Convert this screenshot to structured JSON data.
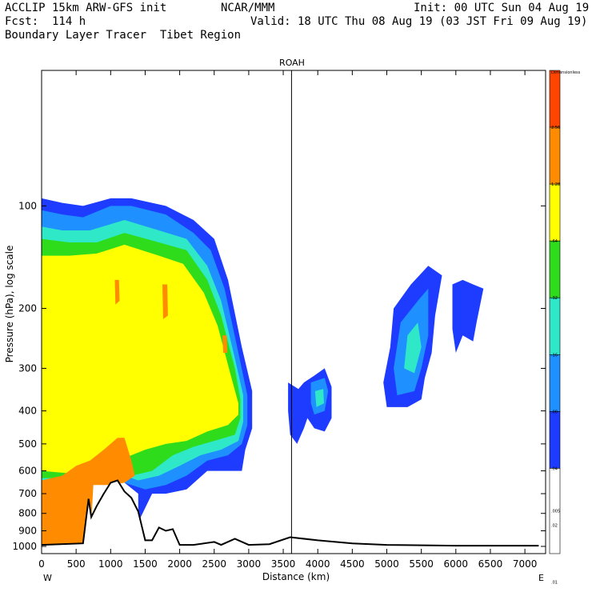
{
  "header": {
    "model": "ACCLIP 15km ARW-GFS init",
    "fcst": "Fcst:  114 h",
    "product": "Boundary Layer Tracer  Tibet Region",
    "org": "NCAR/MMM",
    "init": "Init: 00 UTC Sun 04 Aug 19",
    "valid": "Valid: 18 UTC Thu 08 Aug 19 (03 JST Fri 09 Aug 19)"
  },
  "chart_data": {
    "type": "heatmap",
    "title": "",
    "xlabel": "Distance (km)",
    "ylabel": "Pressure (hPa), log scale",
    "xlim": [
      0,
      7300
    ],
    "ylim": [
      1050,
      40
    ],
    "y_scale": "log",
    "x_ticks": [
      "0",
      "500",
      "1000",
      "1500",
      "2000",
      "2500",
      "3000",
      "3500",
      "4000",
      "4500",
      "5000",
      "5500",
      "6000",
      "6500",
      "7000"
    ],
    "x_tick_values": [
      0,
      500,
      1000,
      1500,
      2000,
      2500,
      3000,
      3500,
      4000,
      4500,
      5000,
      5500,
      6000,
      6500,
      7000
    ],
    "y_ticks": [
      "100",
      "200",
      "300",
      "400",
      "500",
      "600",
      "700",
      "800",
      "900",
      "1000"
    ],
    "y_tick_values": [
      100,
      200,
      300,
      400,
      500,
      600,
      700,
      800,
      900,
      1000
    ],
    "x_end_labels": {
      "left": "W",
      "right": "E"
    },
    "marker": {
      "label": "ROAH",
      "x": 3620
    },
    "colorbar": {
      "levels": [
        "Dimensionless",
        "2.56",
        "1.28",
        ".64",
        ".32",
        ".16",
        ".08",
        ".04",
        ".02",
        ".01",
        ".005"
      ],
      "colors": [
        "#ff4500",
        "#ff8c00",
        "#ffff00",
        "#2fdc1c",
        "#2fe8c8",
        "#1e90ff",
        "#1e3cff",
        "#ffffff"
      ]
    },
    "terrain": [
      [
        0,
        990
      ],
      [
        600,
        980
      ],
      [
        680,
        725
      ],
      [
        720,
        820
      ],
      [
        800,
        760
      ],
      [
        900,
        700
      ],
      [
        1000,
        650
      ],
      [
        1100,
        640
      ],
      [
        1200,
        690
      ],
      [
        1300,
        720
      ],
      [
        1400,
        790
      ],
      [
        1500,
        960
      ],
      [
        1600,
        960
      ],
      [
        1700,
        880
      ],
      [
        1800,
        900
      ],
      [
        1900,
        890
      ],
      [
        2000,
        990
      ],
      [
        2200,
        990
      ],
      [
        2500,
        970
      ],
      [
        2600,
        990
      ],
      [
        2800,
        950
      ],
      [
        3000,
        990
      ],
      [
        3300,
        985
      ],
      [
        3600,
        940
      ],
      [
        4000,
        960
      ],
      [
        4500,
        980
      ],
      [
        5000,
        990
      ],
      [
        6000,
        995
      ],
      [
        7200,
        995
      ]
    ],
    "series": [
      {
        "level": ".01",
        "color": "#1e3cff",
        "regions": [
          {
            "points": [
              [
                0,
                95
              ],
              [
                300,
                98
              ],
              [
                600,
                100
              ],
              [
                1000,
                95
              ],
              [
                1300,
                95
              ],
              [
                1800,
                100
              ],
              [
                2200,
                110
              ],
              [
                2500,
                125
              ],
              [
                2700,
                165
              ],
              [
                2900,
                260
              ],
              [
                3050,
                350
              ],
              [
                3050,
                450
              ],
              [
                2950,
                520
              ],
              [
                2900,
                600
              ],
              [
                2700,
                600
              ],
              [
                2400,
                600
              ],
              [
                2100,
                680
              ],
              [
                1800,
                700
              ],
              [
                1600,
                700
              ],
              [
                1400,
                850
              ],
              [
                1400,
                700
              ],
              [
                1200,
                650
              ],
              [
                1000,
                640
              ],
              [
                700,
                640
              ],
              [
                400,
                650
              ],
              [
                0,
                640
              ]
            ]
          },
          {
            "points": [
              [
                3570,
                330
              ],
              [
                3720,
                345
              ],
              [
                3800,
                330
              ],
              [
                3950,
                315
              ],
              [
                4100,
                300
              ],
              [
                4200,
                340
              ],
              [
                4200,
                420
              ],
              [
                4100,
                460
              ],
              [
                3950,
                450
              ],
              [
                3850,
                420
              ],
              [
                3800,
                450
              ],
              [
                3700,
                500
              ],
              [
                3600,
                470
              ],
              [
                3570,
                400
              ]
            ]
          },
          {
            "points": [
              [
                5100,
                200
              ],
              [
                5350,
                170
              ],
              [
                5600,
                150
              ],
              [
                5800,
                160
              ],
              [
                5700,
                210
              ],
              [
                5650,
                270
              ],
              [
                5550,
                320
              ],
              [
                5500,
                370
              ],
              [
                5300,
                390
              ],
              [
                5000,
                390
              ],
              [
                4950,
                330
              ],
              [
                5050,
                260
              ]
            ]
          },
          {
            "points": [
              [
                5950,
                170
              ],
              [
                6100,
                165
              ],
              [
                6250,
                170
              ],
              [
                6400,
                175
              ],
              [
                6300,
                220
              ],
              [
                6250,
                250
              ],
              [
                6100,
                240
              ],
              [
                6000,
                270
              ],
              [
                5950,
                230
              ]
            ]
          }
        ]
      },
      {
        "level": ".02",
        "color": "#1e90ff",
        "regions": [
          {
            "points": [
              [
                0,
                103
              ],
              [
                300,
                106
              ],
              [
                600,
                108
              ],
              [
                1000,
                100
              ],
              [
                1300,
                100
              ],
              [
                1800,
                106
              ],
              [
                2200,
                120
              ],
              [
                2450,
                135
              ],
              [
                2650,
                175
              ],
              [
                2850,
                270
              ],
              [
                2980,
                360
              ],
              [
                2980,
                440
              ],
              [
                2900,
                500
              ],
              [
                2700,
                540
              ],
              [
                2400,
                560
              ],
              [
                2100,
                620
              ],
              [
                1800,
                660
              ],
              [
                1500,
                680
              ],
              [
                1300,
                660
              ],
              [
                1100,
                640
              ],
              [
                800,
                650
              ],
              [
                400,
                660
              ],
              [
                0,
                655
              ]
            ]
          },
          {
            "points": [
              [
                3900,
                330
              ],
              [
                4100,
                320
              ],
              [
                4150,
                350
              ],
              [
                4100,
                400
              ],
              [
                3950,
                410
              ],
              [
                3900,
                380
              ]
            ]
          },
          {
            "points": [
              [
                5200,
                220
              ],
              [
                5450,
                190
              ],
              [
                5600,
                175
              ],
              [
                5600,
                240
              ],
              [
                5500,
                300
              ],
              [
                5400,
                350
              ],
              [
                5150,
                360
              ],
              [
                5100,
                300
              ]
            ]
          }
        ]
      },
      {
        "level": ".04",
        "color": "#2fe8c8",
        "regions": [
          {
            "points": [
              [
                0,
                115
              ],
              [
                300,
                118
              ],
              [
                700,
                118
              ],
              [
                1200,
                110
              ],
              [
                1700,
                118
              ],
              [
                2100,
                125
              ],
              [
                2400,
                150
              ],
              [
                2600,
                190
              ],
              [
                2800,
                280
              ],
              [
                2920,
                360
              ],
              [
                2920,
                430
              ],
              [
                2850,
                490
              ],
              [
                2600,
                520
              ],
              [
                2300,
                540
              ],
              [
                2000,
                580
              ],
              [
                1700,
                620
              ],
              [
                1400,
                640
              ],
              [
                1200,
                620
              ],
              [
                900,
                640
              ],
              [
                400,
                650
              ],
              [
                0,
                645
              ]
            ]
          },
          {
            "points": [
              [
                3960,
                350
              ],
              [
                4080,
                345
              ],
              [
                4090,
                380
              ],
              [
                3980,
                390
              ]
            ]
          },
          {
            "points": [
              [
                5300,
                240
              ],
              [
                5450,
                220
              ],
              [
                5500,
                260
              ],
              [
                5400,
                310
              ],
              [
                5250,
                300
              ]
            ]
          }
        ]
      },
      {
        "level": ".08",
        "color": "#2fdc1c",
        "regions": [
          {
            "points": [
              [
                0,
                125
              ],
              [
                400,
                128
              ],
              [
                800,
                128
              ],
              [
                1200,
                120
              ],
              [
                1700,
                128
              ],
              [
                2100,
                135
              ],
              [
                2400,
                165
              ],
              [
                2600,
                210
              ],
              [
                2800,
                300
              ],
              [
                2880,
                370
              ],
              [
                2880,
                420
              ],
              [
                2800,
                470
              ],
              [
                2500,
                490
              ],
              [
                2200,
                510
              ],
              [
                1900,
                540
              ],
              [
                1600,
                600
              ],
              [
                1300,
                620
              ],
              [
                1000,
                620
              ],
              [
                700,
                630
              ],
              [
                400,
                630
              ],
              [
                0,
                630
              ]
            ]
          }
        ]
      },
      {
        "level": ".16",
        "color": "#ffff00",
        "regions": [
          {
            "points": [
              [
                0,
                140
              ],
              [
                400,
                140
              ],
              [
                800,
                138
              ],
              [
                1200,
                130
              ],
              [
                1700,
                140
              ],
              [
                2050,
                148
              ],
              [
                2350,
                180
              ],
              [
                2550,
                225
              ],
              [
                2750,
                320
              ],
              [
                2850,
                380
              ],
              [
                2850,
                410
              ],
              [
                2700,
                440
              ],
              [
                2400,
                460
              ],
              [
                2100,
                490
              ],
              [
                1800,
                500
              ],
              [
                1500,
                520
              ],
              [
                1200,
                550
              ],
              [
                1000,
                580
              ],
              [
                700,
                600
              ],
              [
                400,
                610
              ],
              [
                0,
                600
              ]
            ]
          }
        ]
      },
      {
        "level": ".32",
        "color": "#ff8c00",
        "regions": [
          {
            "points": [
              [
                0,
                640
              ],
              [
                300,
                620
              ],
              [
                500,
                580
              ],
              [
                700,
                560
              ],
              [
                900,
                520
              ],
              [
                1100,
                480
              ],
              [
                1200,
                480
              ],
              [
                1300,
                560
              ],
              [
                1350,
                620
              ],
              [
                1200,
                650
              ],
              [
                1000,
                660
              ],
              [
                750,
                660
              ],
              [
                700,
                990
              ],
              [
                0,
                990
              ]
            ]
          },
          {
            "points": [
              [
                1750,
                170
              ],
              [
                1820,
                170
              ],
              [
                1830,
                210
              ],
              [
                1760,
                215
              ]
            ]
          },
          {
            "points": [
              [
                2620,
                240
              ],
              [
                2680,
                240
              ],
              [
                2690,
                270
              ],
              [
                2630,
                270
              ]
            ]
          },
          {
            "points": [
              [
                1060,
                165
              ],
              [
                1120,
                165
              ],
              [
                1130,
                190
              ],
              [
                1070,
                195
              ]
            ]
          }
        ]
      }
    ]
  }
}
